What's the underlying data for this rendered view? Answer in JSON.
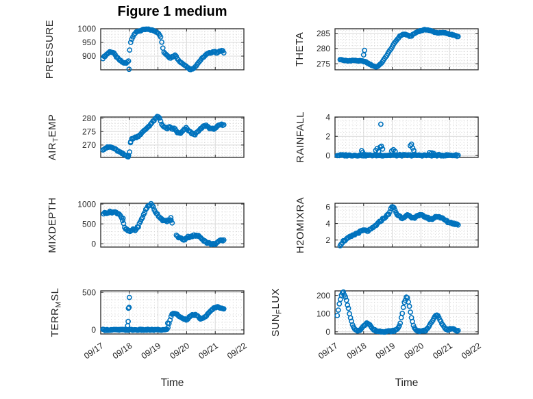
{
  "figure": {
    "title": "Figure 1 medium",
    "xlabel": "Time",
    "x_tick_labels": [
      "09/17",
      "09/18",
      "09/19",
      "09/20",
      "09/21",
      "09/22"
    ],
    "x_value_unit": "days after 09/17 tick",
    "colors": {
      "marker": "#0072BD",
      "axis": "#262626",
      "major_grid": "#d9d9d9",
      "minor_grid": "#c9c9c9",
      "text": "#262626",
      "background": "#ffffff"
    },
    "xlim": [
      0,
      5
    ],
    "x_minor_step": 0.125
  },
  "chart_data": [
    {
      "id": "pressure",
      "type": "scatter",
      "row": 0,
      "col": 0,
      "ylabel": "PRESSURE",
      "ylabel_parts": [
        {
          "t": "PRESSURE"
        }
      ],
      "yticks": [
        900,
        950,
        1000
      ],
      "ylim": [
        850,
        1000
      ],
      "y_minor_step": 10,
      "samples": 110,
      "jitter": 2,
      "trend": [
        [
          0.08,
          893
        ],
        [
          0.2,
          906
        ],
        [
          0.33,
          917
        ],
        [
          0.45,
          912
        ],
        [
          0.55,
          897
        ],
        [
          0.65,
          886
        ],
        [
          0.78,
          876
        ],
        [
          0.9,
          874
        ],
        [
          0.97,
          882
        ],
        [
          1.03,
          946
        ],
        [
          1.08,
          960
        ],
        [
          1.15,
          979
        ],
        [
          1.3,
          991
        ],
        [
          1.45,
          995
        ],
        [
          1.6,
          998
        ],
        [
          1.75,
          996
        ],
        [
          1.9,
          991
        ],
        [
          2.0,
          986
        ],
        [
          2.08,
          975
        ],
        [
          2.14,
          947
        ],
        [
          2.2,
          913
        ],
        [
          2.3,
          906
        ],
        [
          2.42,
          893
        ],
        [
          2.52,
          899
        ],
        [
          2.6,
          906
        ],
        [
          2.68,
          890
        ],
        [
          2.78,
          878
        ],
        [
          2.9,
          871
        ],
        [
          3.0,
          862
        ],
        [
          3.1,
          853
        ],
        [
          3.2,
          852
        ],
        [
          3.32,
          864
        ],
        [
          3.45,
          881
        ],
        [
          3.6,
          898
        ],
        [
          3.72,
          908
        ],
        [
          3.85,
          913
        ],
        [
          3.95,
          917
        ],
        [
          4.05,
          912
        ],
        [
          4.15,
          917
        ],
        [
          4.25,
          921
        ],
        [
          4.3,
          910
        ]
      ],
      "outliers": [
        [
          0.99,
          852
        ]
      ]
    },
    {
      "id": "theta",
      "type": "scatter",
      "row": 0,
      "col": 1,
      "ylabel": "THETA",
      "ylabel_parts": [
        {
          "t": "THETA"
        }
      ],
      "yticks": [
        275,
        280,
        285
      ],
      "ylim": [
        273,
        286.5
      ],
      "y_minor_step": 1,
      "samples": 110,
      "jitter": 0.12,
      "trend": [
        [
          0.18,
          276.4
        ],
        [
          0.3,
          276.1
        ],
        [
          0.45,
          275.9
        ],
        [
          0.6,
          276.1
        ],
        [
          0.75,
          276.0
        ],
        [
          0.9,
          275.9
        ],
        [
          1.05,
          275.7
        ],
        [
          1.2,
          274.9
        ],
        [
          1.35,
          274.2
        ],
        [
          1.45,
          273.9
        ],
        [
          1.58,
          274.8
        ],
        [
          1.7,
          276.2
        ],
        [
          1.85,
          278.4
        ],
        [
          2.0,
          280.6
        ],
        [
          2.12,
          282.4
        ],
        [
          2.25,
          283.9
        ],
        [
          2.35,
          284.6
        ],
        [
          2.45,
          284.7
        ],
        [
          2.55,
          284.2
        ],
        [
          2.65,
          284.0
        ],
        [
          2.75,
          284.8
        ],
        [
          2.9,
          285.6
        ],
        [
          3.05,
          286.0
        ],
        [
          3.2,
          286.2
        ],
        [
          3.35,
          285.8
        ],
        [
          3.5,
          285.3
        ],
        [
          3.65,
          285.1
        ],
        [
          3.8,
          285.2
        ],
        [
          3.95,
          284.9
        ],
        [
          4.1,
          284.5
        ],
        [
          4.3,
          283.9
        ]
      ],
      "outliers": [
        [
          1.0,
          277.9
        ],
        [
          1.03,
          279.4
        ]
      ]
    },
    {
      "id": "air_temp",
      "type": "scatter",
      "row": 1,
      "col": 0,
      "ylabel": "AIR_TEMP",
      "ylabel_parts": [
        {
          "t": "AIR"
        },
        {
          "t": "T",
          "sub": true
        },
        {
          "t": "EMP"
        }
      ],
      "yticks": [
        270,
        275,
        280
      ],
      "ylim": [
        265.4,
        280.4
      ],
      "y_minor_step": 1,
      "samples": 110,
      "jitter": 0.25,
      "trend": [
        [
          0.08,
          268.4
        ],
        [
          0.2,
          269.0
        ],
        [
          0.33,
          269.3
        ],
        [
          0.45,
          268.8
        ],
        [
          0.58,
          267.9
        ],
        [
          0.7,
          267.1
        ],
        [
          0.82,
          266.4
        ],
        [
          0.93,
          265.9
        ],
        [
          1.0,
          266.6
        ],
        [
          1.06,
          272.2
        ],
        [
          1.18,
          272.7
        ],
        [
          1.3,
          273.2
        ],
        [
          1.45,
          274.6
        ],
        [
          1.6,
          276.2
        ],
        [
          1.75,
          277.8
        ],
        [
          1.88,
          279.4
        ],
        [
          1.98,
          280.5
        ],
        [
          2.05,
          280.2
        ],
        [
          2.12,
          278.1
        ],
        [
          2.2,
          276.7
        ],
        [
          2.3,
          276.1
        ],
        [
          2.4,
          276.6
        ],
        [
          2.5,
          275.9
        ],
        [
          2.58,
          276.2
        ],
        [
          2.68,
          274.6
        ],
        [
          2.78,
          274.2
        ],
        [
          2.88,
          275.3
        ],
        [
          2.98,
          276.3
        ],
        [
          3.08,
          275.3
        ],
        [
          3.18,
          274.3
        ],
        [
          3.3,
          274.0
        ],
        [
          3.45,
          275.5
        ],
        [
          3.58,
          276.9
        ],
        [
          3.68,
          277.3
        ],
        [
          3.78,
          276.5
        ],
        [
          3.88,
          275.9
        ],
        [
          3.98,
          276.2
        ],
        [
          4.1,
          277.0
        ],
        [
          4.2,
          277.6
        ],
        [
          4.3,
          277.3
        ]
      ],
      "outliers": [
        [
          1.04,
          270.9
        ],
        [
          0.96,
          265.6
        ]
      ]
    },
    {
      "id": "rainfall",
      "type": "scatter",
      "row": 1,
      "col": 1,
      "ylabel": "RAINFALL",
      "ylabel_parts": [
        {
          "t": "RAINFALL"
        }
      ],
      "yticks": [
        0,
        2,
        4
      ],
      "ylim": [
        -0.2,
        4.02
      ],
      "y_minor_step": 0.4,
      "samples": 115,
      "jitter": 0.07,
      "trend": [
        [
          0.08,
          0.02
        ],
        [
          4.3,
          0.02
        ]
      ],
      "outliers": [
        [
          0.93,
          0.5
        ],
        [
          0.97,
          0.33
        ],
        [
          1.42,
          0.52
        ],
        [
          1.47,
          0.72
        ],
        [
          1.52,
          0.45
        ],
        [
          1.58,
          0.88
        ],
        [
          1.6,
          3.27
        ],
        [
          1.62,
          0.97
        ],
        [
          1.66,
          0.68
        ],
        [
          1.98,
          0.48
        ],
        [
          2.04,
          0.6
        ],
        [
          2.1,
          0.42
        ],
        [
          2.63,
          1.02
        ],
        [
          2.67,
          1.18
        ],
        [
          2.71,
          0.78
        ],
        [
          2.75,
          0.52
        ],
        [
          3.3,
          0.3
        ],
        [
          3.38,
          0.27
        ],
        [
          3.44,
          0.22
        ]
      ]
    },
    {
      "id": "mixdepth",
      "type": "scatter",
      "row": 2,
      "col": 0,
      "ylabel": "MIXDEPTH",
      "ylabel_parts": [
        {
          "t": "MIXDEPTH"
        }
      ],
      "yticks": [
        0,
        500,
        1000
      ],
      "ylim": [
        -85,
        1020
      ],
      "y_minor_step": 100,
      "samples": 115,
      "jitter": 22,
      "gaps": [
        [
          2.5,
          2.61
        ]
      ],
      "trend": [
        [
          0.1,
          765
        ],
        [
          0.22,
          785
        ],
        [
          0.35,
          800
        ],
        [
          0.48,
          795
        ],
        [
          0.6,
          770
        ],
        [
          0.68,
          735
        ],
        [
          0.76,
          600
        ],
        [
          0.84,
          385
        ],
        [
          0.95,
          330
        ],
        [
          1.05,
          300
        ],
        [
          1.12,
          375
        ],
        [
          1.2,
          340
        ],
        [
          1.3,
          420
        ],
        [
          1.42,
          600
        ],
        [
          1.55,
          820
        ],
        [
          1.65,
          950
        ],
        [
          1.75,
          1000
        ],
        [
          1.82,
          940
        ],
        [
          1.9,
          820
        ],
        [
          2.0,
          720
        ],
        [
          2.1,
          640
        ],
        [
          2.2,
          580
        ],
        [
          2.3,
          555
        ],
        [
          2.4,
          610
        ],
        [
          2.48,
          560
        ],
        [
          2.62,
          210
        ],
        [
          2.72,
          165
        ],
        [
          2.82,
          125
        ],
        [
          2.92,
          100
        ],
        [
          3.02,
          165
        ],
        [
          3.12,
          180
        ],
        [
          3.25,
          205
        ],
        [
          3.4,
          195
        ],
        [
          3.52,
          145
        ],
        [
          3.62,
          70
        ],
        [
          3.72,
          25
        ],
        [
          3.82,
          0
        ],
        [
          3.92,
          -15
        ],
        [
          4.02,
          5
        ],
        [
          4.12,
          55
        ],
        [
          4.22,
          80
        ],
        [
          4.3,
          75
        ]
      ],
      "outliers": [
        [
          0.78,
          640
        ],
        [
          2.45,
          655
        ]
      ]
    },
    {
      "id": "h2omixra",
      "type": "scatter",
      "row": 2,
      "col": 1,
      "ylabel": "H2OMIXRA",
      "ylabel_parts": [
        {
          "t": "H2OMIXRA"
        }
      ],
      "yticks": [
        2,
        4,
        6
      ],
      "ylim": [
        1.15,
        6.45
      ],
      "y_minor_step": 0.4,
      "samples": 115,
      "jitter": 0.1,
      "trend": [
        [
          0.18,
          1.4
        ],
        [
          0.3,
          1.9
        ],
        [
          0.45,
          2.2
        ],
        [
          0.6,
          2.5
        ],
        [
          0.75,
          2.8
        ],
        [
          0.88,
          3.0
        ],
        [
          1.0,
          3.2
        ],
        [
          1.1,
          3.1
        ],
        [
          1.2,
          3.15
        ],
        [
          1.35,
          3.55
        ],
        [
          1.5,
          4.0
        ],
        [
          1.65,
          4.5
        ],
        [
          1.8,
          4.9
        ],
        [
          1.9,
          5.3
        ],
        [
          1.97,
          5.9
        ],
        [
          2.03,
          6.05
        ],
        [
          2.1,
          5.6
        ],
        [
          2.16,
          5.1
        ],
        [
          2.25,
          4.9
        ],
        [
          2.35,
          4.65
        ],
        [
          2.45,
          4.9
        ],
        [
          2.55,
          5.0
        ],
        [
          2.65,
          4.7
        ],
        [
          2.75,
          4.65
        ],
        [
          2.85,
          4.95
        ],
        [
          2.95,
          5.0
        ],
        [
          3.05,
          4.95
        ],
        [
          3.15,
          4.8
        ],
        [
          3.25,
          4.65
        ],
        [
          3.35,
          4.5
        ],
        [
          3.45,
          4.65
        ],
        [
          3.55,
          4.9
        ],
        [
          3.65,
          4.8
        ],
        [
          3.75,
          4.6
        ],
        [
          3.85,
          4.4
        ],
        [
          3.95,
          4.15
        ],
        [
          4.05,
          4.1
        ],
        [
          4.15,
          4.0
        ],
        [
          4.25,
          3.9
        ],
        [
          4.3,
          3.9
        ]
      ],
      "outliers": []
    },
    {
      "id": "terr_msl",
      "type": "scatter",
      "row": 3,
      "col": 0,
      "ylabel": "TERR_MSL",
      "ylabel_parts": [
        {
          "t": "TERR"
        },
        {
          "t": "M",
          "sub": true
        },
        {
          "t": "SL"
        }
      ],
      "yticks": [
        0,
        500
      ],
      "ylim": [
        -55,
        520
      ],
      "y_minor_step": 100,
      "samples": 120,
      "jitter": 7,
      "trend": [
        [
          0.08,
          0
        ],
        [
          2.3,
          0
        ],
        [
          2.36,
          45
        ],
        [
          2.42,
          130
        ],
        [
          2.48,
          205
        ],
        [
          2.54,
          225
        ],
        [
          2.62,
          215
        ],
        [
          2.7,
          195
        ],
        [
          2.8,
          162
        ],
        [
          2.9,
          150
        ],
        [
          3.0,
          136
        ],
        [
          3.1,
          172
        ],
        [
          3.2,
          196
        ],
        [
          3.3,
          200
        ],
        [
          3.38,
          182
        ],
        [
          3.46,
          152
        ],
        [
          3.54,
          146
        ],
        [
          3.62,
          166
        ],
        [
          3.72,
          202
        ],
        [
          3.82,
          242
        ],
        [
          3.92,
          282
        ],
        [
          4.0,
          300
        ],
        [
          4.1,
          305
        ],
        [
          4.2,
          295
        ],
        [
          4.3,
          280
        ]
      ],
      "outliers": [
        [
          0.94,
          55
        ],
        [
          0.96,
          112
        ],
        [
          0.97,
          288
        ],
        [
          0.99,
          300
        ],
        [
          1.0,
          432
        ],
        [
          2.34,
          90
        ]
      ]
    },
    {
      "id": "sun_flux",
      "type": "scatter",
      "row": 3,
      "col": 1,
      "ylabel": "SUN_FLUX",
      "ylabel_parts": [
        {
          "t": "SUN"
        },
        {
          "t": "F",
          "sub": true
        },
        {
          "t": "LUX"
        }
      ],
      "yticks": [
        0,
        100,
        200
      ],
      "ylim": [
        -12,
        225
      ],
      "y_minor_step": 20,
      "samples": 120,
      "jitter": 3.5,
      "trend": [
        [
          0.08,
          92
        ],
        [
          0.12,
          126
        ],
        [
          0.16,
          158
        ],
        [
          0.2,
          188
        ],
        [
          0.25,
          214
        ],
        [
          0.3,
          218
        ],
        [
          0.35,
          196
        ],
        [
          0.4,
          170
        ],
        [
          0.45,
          140
        ],
        [
          0.5,
          106
        ],
        [
          0.55,
          70
        ],
        [
          0.6,
          42
        ],
        [
          0.67,
          16
        ],
        [
          0.75,
          5
        ],
        [
          0.85,
          8
        ],
        [
          0.95,
          22
        ],
        [
          1.05,
          40
        ],
        [
          1.12,
          52
        ],
        [
          1.22,
          38
        ],
        [
          1.32,
          14
        ],
        [
          1.45,
          4
        ],
        [
          1.6,
          2
        ],
        [
          1.75,
          2
        ],
        [
          1.9,
          3
        ],
        [
          2.05,
          5
        ],
        [
          2.18,
          14
        ],
        [
          2.27,
          42
        ],
        [
          2.34,
          96
        ],
        [
          2.4,
          150
        ],
        [
          2.46,
          176
        ],
        [
          2.5,
          197
        ],
        [
          2.55,
          172
        ],
        [
          2.6,
          136
        ],
        [
          2.65,
          94
        ],
        [
          2.7,
          56
        ],
        [
          2.76,
          26
        ],
        [
          2.85,
          9
        ],
        [
          3.0,
          3
        ],
        [
          3.15,
          6
        ],
        [
          3.25,
          18
        ],
        [
          3.35,
          46
        ],
        [
          3.45,
          76
        ],
        [
          3.55,
          96
        ],
        [
          3.65,
          72
        ],
        [
          3.75,
          40
        ],
        [
          3.85,
          16
        ],
        [
          3.95,
          12
        ],
        [
          4.05,
          18
        ],
        [
          4.15,
          12
        ],
        [
          4.25,
          6
        ],
        [
          4.3,
          4
        ]
      ],
      "outliers": []
    }
  ]
}
